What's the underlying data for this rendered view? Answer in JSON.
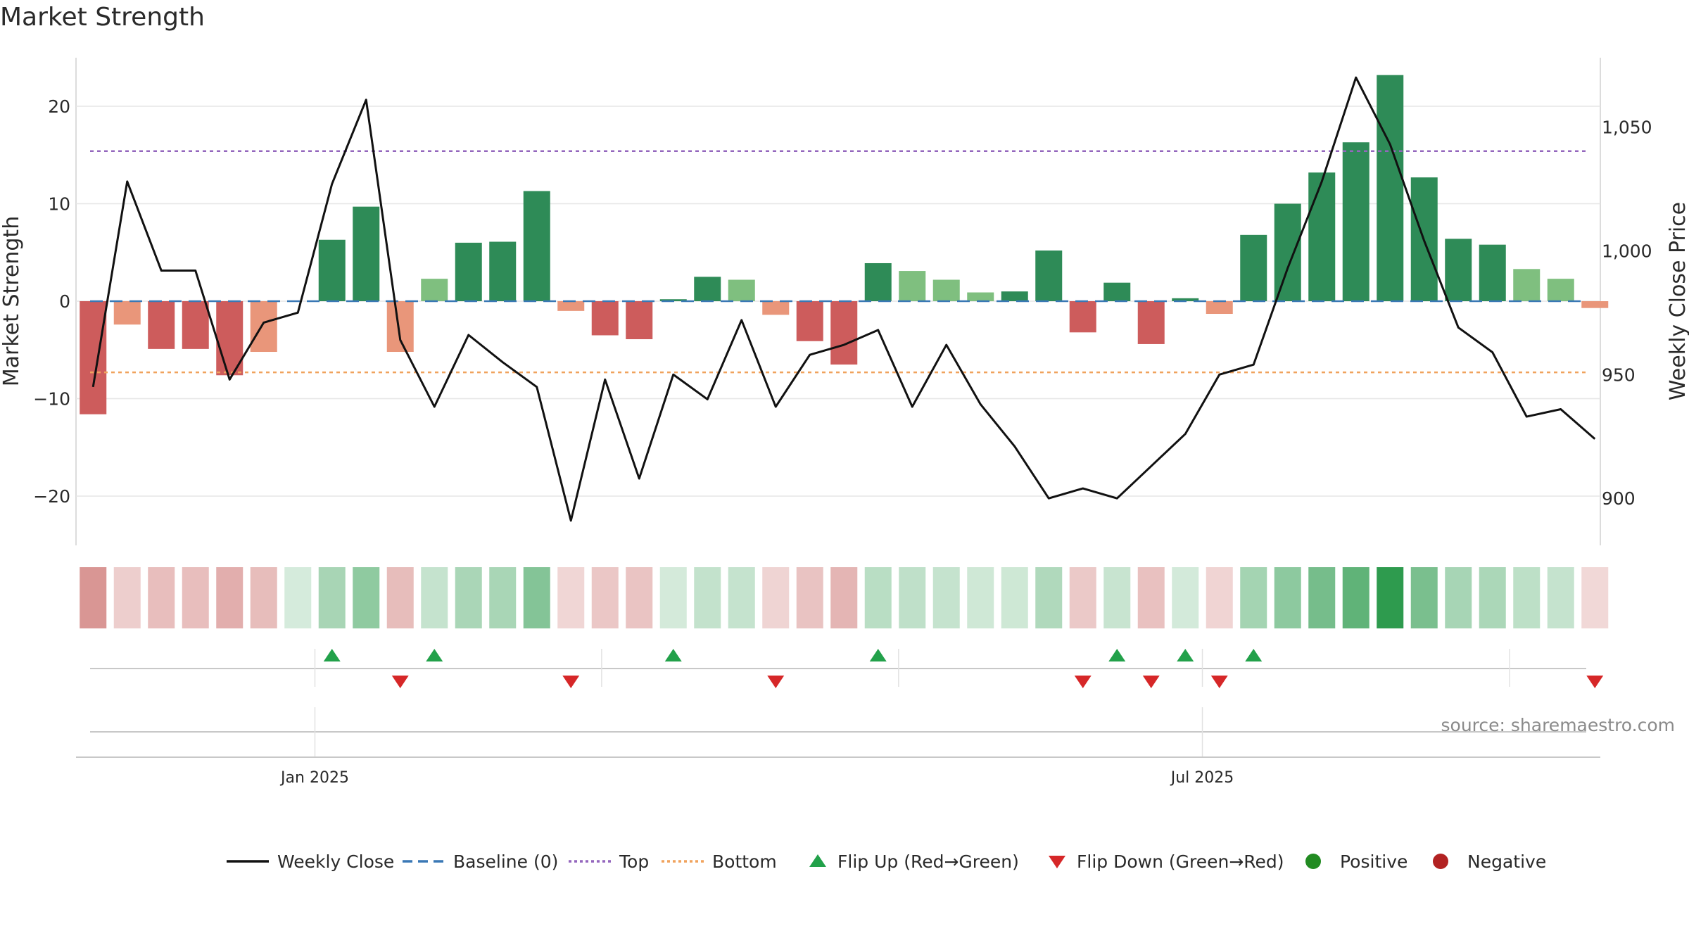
{
  "chart_data": {
    "type": "bar",
    "title": "Market Strength",
    "ylabel": "Market Strength",
    "y2label": "Weekly Close Price",
    "ylim": [
      -25,
      25
    ],
    "y2lim": [
      881,
      1078
    ],
    "yticks": [
      20,
      10,
      0,
      -10,
      -20
    ],
    "ytick_labels": [
      "20",
      "10",
      "0",
      "−10",
      "−20"
    ],
    "y2ticks": [
      1050,
      1000,
      950,
      900
    ],
    "y2tick_labels": [
      "1,050",
      "1,000",
      "950",
      "900"
    ],
    "xticks": [
      {
        "index": 6.5,
        "label": "Jan 2025"
      },
      {
        "index": 32.5,
        "label": "Jul 2025"
      }
    ],
    "top_level": 15.4,
    "bottom_level": -7.3,
    "strength": [
      -11.6,
      -2.4,
      -4.9,
      -4.9,
      -7.6,
      -5.2,
      0,
      6.3,
      9.7,
      -5.2,
      2.3,
      6.0,
      6.1,
      11.3,
      -1.0,
      -3.5,
      -3.9,
      0.2,
      2.5,
      2.2,
      -1.4,
      -4.1,
      -6.5,
      3.9,
      3.1,
      2.2,
      0.9,
      1.0,
      5.2,
      -3.2,
      1.9,
      -4.4,
      0.3,
      -1.3,
      6.8,
      10.0,
      13.2,
      16.3,
      23.2,
      12.7,
      6.4,
      5.8,
      3.3,
      2.3,
      -0.7
    ],
    "weekly_close": [
      945,
      1028,
      992,
      992,
      948,
      971,
      975,
      1027,
      1061,
      964,
      937,
      966,
      955,
      945,
      891,
      948,
      908,
      950,
      940,
      972,
      937,
      958,
      962,
      968,
      937,
      962,
      938,
      921,
      900,
      904,
      900,
      913,
      926,
      950,
      954,
      993,
      1028,
      1070,
      1043,
      1004,
      969,
      959,
      933,
      936,
      924
    ],
    "flip_up": [
      7,
      10,
      17,
      23,
      30,
      32,
      34
    ],
    "flip_down": [
      9,
      14,
      20,
      29,
      31,
      33,
      44
    ],
    "vlines": [
      6.5,
      14.9,
      23.6,
      32.5,
      41.5
    ],
    "legend": [
      "Weekly Close",
      "Baseline (0)",
      "Top",
      "Bottom",
      "Flip Up (Red→Green)",
      "Flip Down (Green→Red)",
      "Positive",
      "Negative"
    ],
    "source": "source: sharemaestro.com",
    "colors": {
      "pos_strong": "#2e8b57",
      "pos_light": "#7fbf7f",
      "neg_strong": "#cd5c5c",
      "neg_light": "#e9967a",
      "line": "#111111",
      "baseline": "#3a78b5",
      "top": "#9467bd",
      "bottom": "#f0a35e",
      "flip_up": "#22a14a",
      "flip_down": "#d62728",
      "positive_dot": "#228b22",
      "negative_dot": "#b22222",
      "grid": "#e6e6e6",
      "source": "#8a8a8a"
    }
  }
}
